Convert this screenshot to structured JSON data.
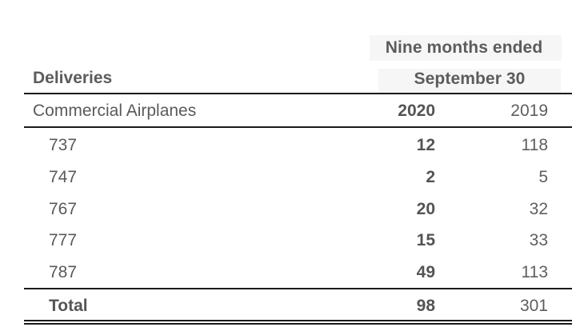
{
  "header": {
    "period_line1": "Nine months ended",
    "period_line2": "September 30",
    "section_title": "Deliveries"
  },
  "table": {
    "segment_label": "Commercial Airplanes",
    "col_2020": "2020",
    "col_2019": "2019",
    "rows": [
      {
        "model": "737",
        "v2020": "12",
        "v2019": "118"
      },
      {
        "model": "747",
        "v2020": "2",
        "v2019": "5"
      },
      {
        "model": "767",
        "v2020": "20",
        "v2019": "32"
      },
      {
        "model": "777",
        "v2020": "15",
        "v2019": "33"
      },
      {
        "model": "787",
        "v2020": "49",
        "v2019": "113"
      }
    ],
    "total": {
      "label": "Total",
      "v2020": "98",
      "v2019": "301"
    }
  }
}
